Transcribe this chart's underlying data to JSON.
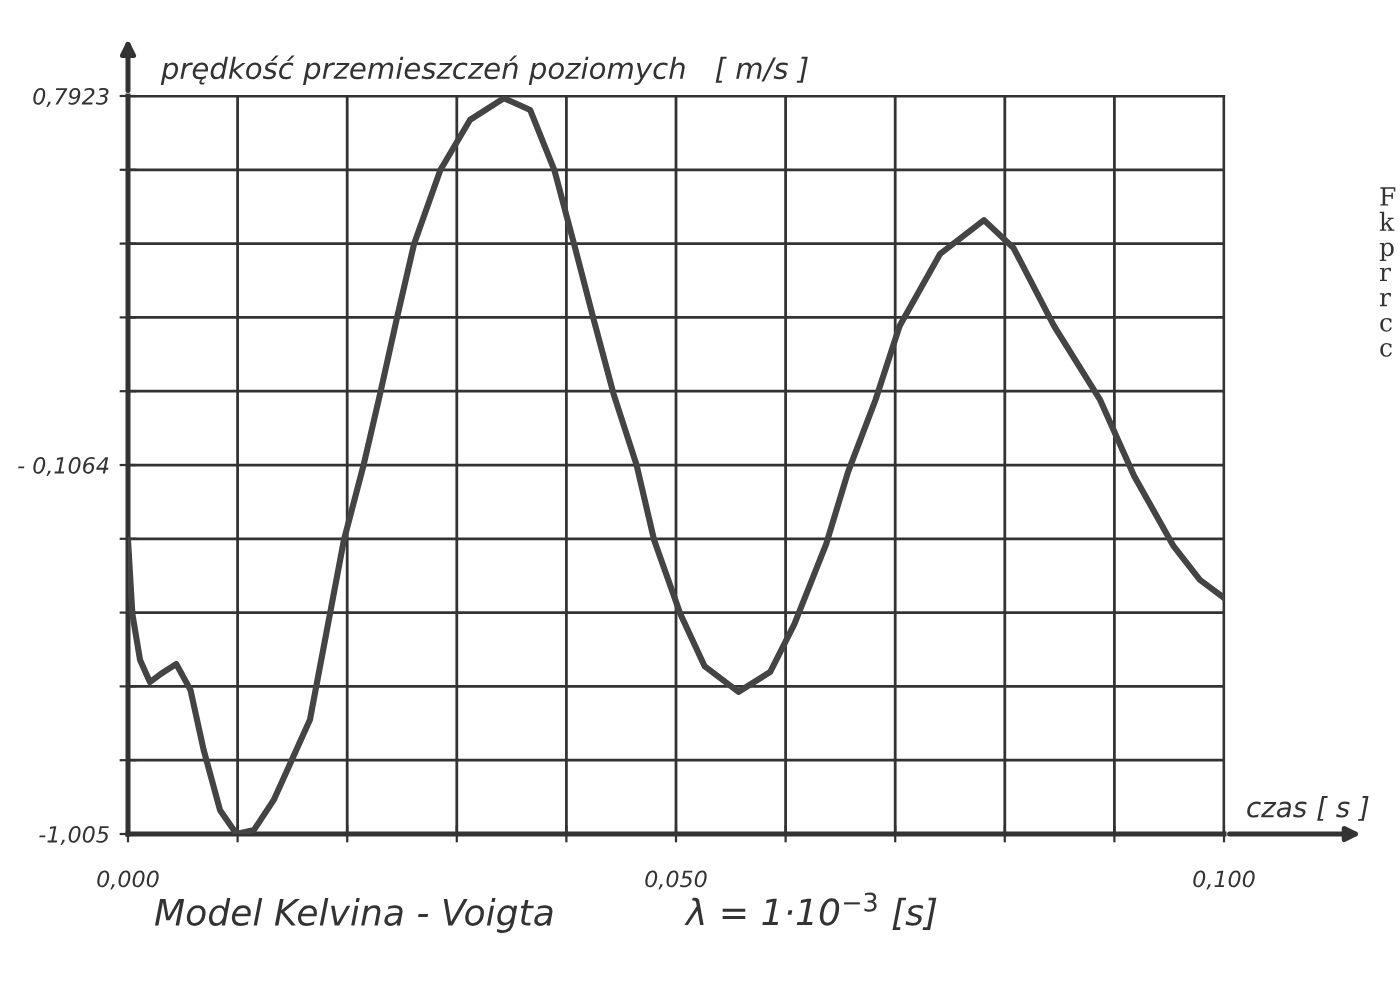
{
  "chart_data": {
    "type": "line",
    "ylabel": "prędkość przemieszczeń poziomych   [ m/s ]",
    "xlabel": "czas [ s ]",
    "annotations": [
      "Model Kelvina - Voigta",
      "λ = 1·10$^{−3}$ [s]",
      "F\nk\np\nr\nr\nc\nc"
    ],
    "x": [
      0,
      0.0004,
      0.0011,
      0.002,
      0.003,
      0.0044,
      0.0057,
      0.0069,
      0.0084,
      0.0099,
      0.0115,
      0.0133,
      0.0166,
      0.0197,
      0.0215,
      0.023,
      0.0245,
      0.0261,
      0.0285,
      0.0312,
      0.0343,
      0.0367,
      0.0389,
      0.0407,
      0.0425,
      0.0443,
      0.0464,
      0.048,
      0.0504,
      0.0526,
      0.0557,
      0.0586,
      0.0608,
      0.0637,
      0.0657,
      0.0682,
      0.0704,
      0.0741,
      0.0781,
      0.0808,
      0.0845,
      0.0887,
      0.0918,
      0.0954,
      0.0978,
      0.1
    ],
    "series": [
      {
        "color": "#444444",
        "values": [
          -0.289,
          -0.469,
          -0.581,
          -0.635,
          -0.615,
          -0.591,
          -0.654,
          -0.8,
          -0.947,
          -1.005,
          -0.995,
          -0.922,
          -0.727,
          -0.289,
          -0.106,
          0.067,
          0.247,
          0.432,
          0.612,
          0.734,
          0.787,
          0.758,
          0.612,
          0.432,
          0.247,
          0.067,
          -0.106,
          -0.289,
          -0.469,
          -0.596,
          -0.659,
          -0.61,
          -0.494,
          -0.299,
          -0.123,
          0.052,
          0.232,
          0.408,
          0.49,
          0.422,
          0.232,
          0.052,
          -0.133,
          -0.304,
          -0.386,
          -0.43
        ]
      }
    ],
    "xlim": [
      0,
      0.1
    ],
    "xticks": [
      {
        "value": 0,
        "label": "0,000"
      },
      {
        "value": 0.01,
        "label": null
      },
      {
        "value": 0.02,
        "label": null
      },
      {
        "value": 0.03,
        "label": null
      },
      {
        "value": 0.04,
        "label": null
      },
      {
        "value": 0.05,
        "label": "0,050"
      },
      {
        "value": 0.06,
        "label": null
      },
      {
        "value": 0.07,
        "label": null
      },
      {
        "value": 0.08,
        "label": null
      },
      {
        "value": 0.09,
        "label": null
      },
      {
        "value": 0.1,
        "label": "0,100"
      }
    ],
    "ylim": [
      -1.005,
      0.7923
    ],
    "yticks": [
      {
        "value": -1.005,
        "label": "-1,005"
      },
      {
        "value": -0.82527,
        "label": null
      },
      {
        "value": -0.64554,
        "label": null
      },
      {
        "value": -0.46581,
        "label": null
      },
      {
        "value": -0.28608,
        "label": null
      },
      {
        "value": -0.1064,
        "label": "- 0,1064"
      },
      {
        "value": 0.07339,
        "label": null
      },
      {
        "value": 0.25312,
        "label": null
      },
      {
        "value": 0.43285,
        "label": null
      },
      {
        "value": 0.61258,
        "label": null
      },
      {
        "value": 0.7923,
        "label": "0,7923"
      }
    ],
    "grid": true,
    "legend": false,
    "marker": "none",
    "line_style": "solid"
  }
}
